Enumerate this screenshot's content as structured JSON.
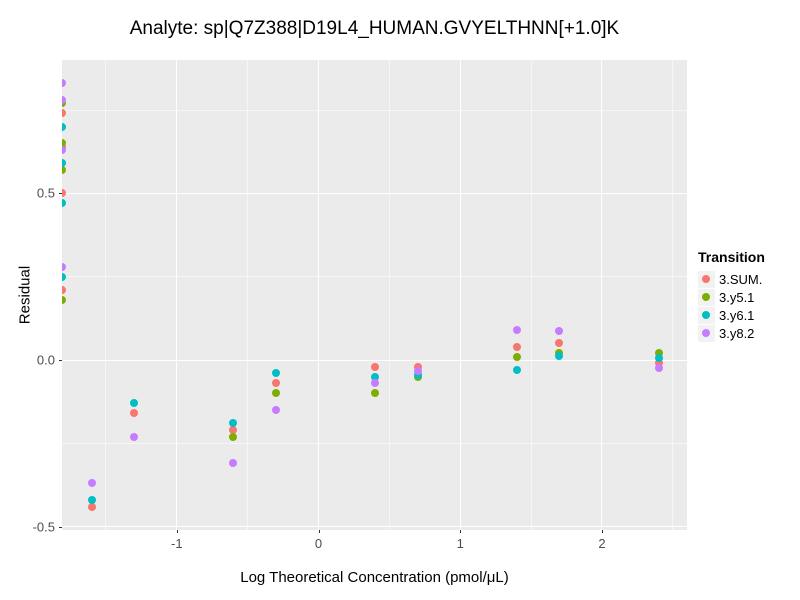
{
  "chart_data": {
    "type": "scatter",
    "title": "Analyte: sp|Q7Z388|D19L4_HUMAN.GVYELTHNN[+1.0]K",
    "xlabel": "Log Theoretical Concentration (pmol/μL)",
    "ylabel": "Residual",
    "xlim": [
      -1.81,
      2.6
    ],
    "ylim": [
      -0.51,
      0.9
    ],
    "grid": true,
    "x_ticks": [
      {
        "v": -1,
        "label": "-1"
      },
      {
        "v": 0,
        "label": "0"
      },
      {
        "v": 1,
        "label": "1"
      },
      {
        "v": 2,
        "label": "2"
      }
    ],
    "y_ticks": [
      {
        "v": 0.5,
        "label": "0.5"
      },
      {
        "v": 0.0,
        "label": "0.0"
      },
      {
        "v": -0.5,
        "label": "-0.5"
      }
    ],
    "x_minor_ticks": [
      -1.5,
      -0.5,
      0.5,
      1.5,
      2.5
    ],
    "y_minor_ticks": [
      0.75,
      0.25,
      -0.25
    ],
    "legend": {
      "title": "Transition",
      "position": "right",
      "entries": [
        {
          "label": "3.SUM.",
          "color": "#F8766D"
        },
        {
          "label": "3.y5.1",
          "color": "#7CAE00"
        },
        {
          "label": "3.y6.1",
          "color": "#00BFC4"
        },
        {
          "label": "3.y8.2",
          "color": "#C77CFF"
        }
      ]
    },
    "series": [
      {
        "name": "3.SUM.",
        "color": "#F8766D",
        "points": [
          [
            "-Inf",
            0.74
          ],
          [
            "-Inf",
            0.64
          ],
          [
            "-Inf",
            0.5
          ],
          [
            "-Inf",
            0.21
          ],
          [
            -1.6,
            -0.44
          ],
          [
            -1.3,
            -0.16
          ],
          [
            -0.6,
            -0.21
          ],
          [
            -0.3,
            -0.07
          ],
          [
            0.4,
            -0.02
          ],
          [
            0.7,
            -0.02
          ],
          [
            1.4,
            0.04
          ],
          [
            1.7,
            0.05
          ],
          [
            2.4,
            -0.01
          ]
        ]
      },
      {
        "name": "3.y5.1",
        "color": "#7CAE00",
        "points": [
          [
            "-Inf",
            0.77
          ],
          [
            "-Inf",
            0.65
          ],
          [
            "-Inf",
            0.57
          ],
          [
            "-Inf",
            0.18
          ],
          [
            -0.6,
            -0.23
          ],
          [
            -0.3,
            -0.1
          ],
          [
            0.4,
            -0.1
          ],
          [
            0.7,
            -0.05
          ],
          [
            1.4,
            0.01
          ],
          [
            1.7,
            0.02
          ],
          [
            2.4,
            0.02
          ]
        ]
      },
      {
        "name": "3.y6.1",
        "color": "#00BFC4",
        "points": [
          [
            "-Inf",
            0.7
          ],
          [
            "-Inf",
            0.59
          ],
          [
            "-Inf",
            0.47
          ],
          [
            "-Inf",
            0.25
          ],
          [
            -1.6,
            -0.42
          ],
          [
            -1.3,
            -0.13
          ],
          [
            -0.6,
            -0.19
          ],
          [
            -0.3,
            -0.04
          ],
          [
            0.4,
            -0.05
          ],
          [
            0.7,
            -0.045
          ],
          [
            1.4,
            -0.03
          ],
          [
            1.7,
            0.013
          ],
          [
            2.4,
            0.005
          ]
        ]
      },
      {
        "name": "3.y8.2",
        "color": "#C77CFF",
        "points": [
          [
            "-Inf",
            0.83
          ],
          [
            "-Inf",
            0.78
          ],
          [
            "-Inf",
            0.63
          ],
          [
            "-Inf",
            0.28
          ],
          [
            -1.6,
            -0.37
          ],
          [
            -1.3,
            -0.23
          ],
          [
            -0.6,
            -0.31
          ],
          [
            -0.3,
            -0.15
          ],
          [
            0.4,
            -0.07
          ],
          [
            0.7,
            -0.033
          ],
          [
            1.4,
            0.09
          ],
          [
            1.7,
            0.088
          ],
          [
            2.4,
            -0.024
          ]
        ]
      }
    ],
    "colors": {
      "panel_background": "#EBEBEB",
      "gridline": "#FFFFFF",
      "tick_label": "#4D4D4D",
      "text": "#000000",
      "legend_key_background": "#F2F2F2"
    }
  }
}
